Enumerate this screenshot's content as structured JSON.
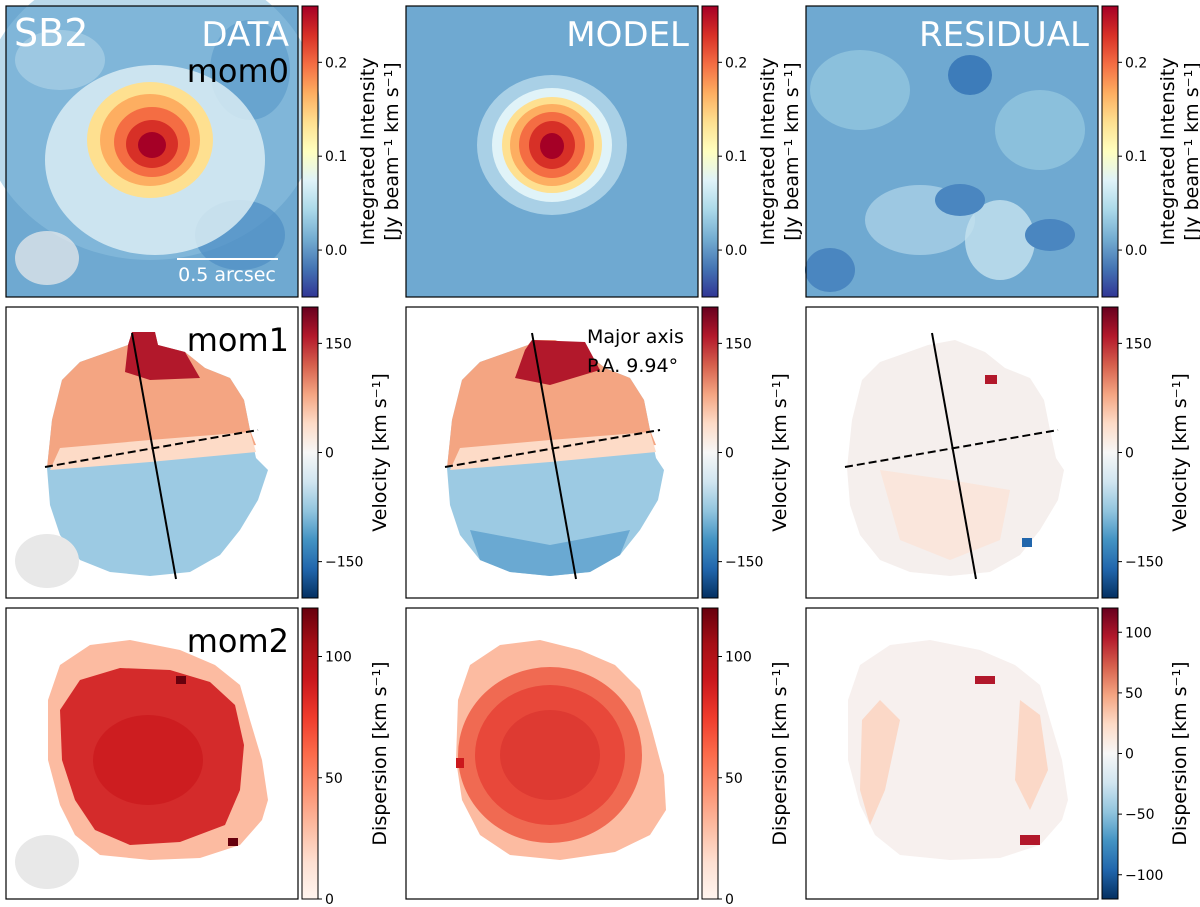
{
  "figure": {
    "source_label": "SB2",
    "scale_bar_label": "0.5 arcsec",
    "major_axis_label_line1": "Major axis",
    "major_axis_label_line2": "P.A. 9.94°"
  },
  "colors": {
    "colormap_rdbu_r": [
      "#053061",
      "#2166ac",
      "#4393c3",
      "#92c5de",
      "#d1e5f0",
      "#f7f7f7",
      "#fddbc7",
      "#f4a582",
      "#d6604d",
      "#b2182b",
      "#67001f"
    ],
    "colormap_jet_like": [
      "#313695",
      "#4575b4",
      "#74add1",
      "#abd9e9",
      "#e0f3f8",
      "#ffffbf",
      "#fee090",
      "#fdae61",
      "#f46d43",
      "#d73027",
      "#a50026"
    ],
    "colormap_reds": [
      "#fff5f0",
      "#fee0d2",
      "#fcbba1",
      "#fc9272",
      "#fb6a4a",
      "#ef3b2c",
      "#cb181d",
      "#a50f15",
      "#67000d"
    ],
    "beam_fill": "#e8e8e8",
    "axis_line": "#000000"
  },
  "chart_data": [
    {
      "type": "heatmap",
      "row": "mom0",
      "column": "DATA",
      "panel_title": "DATA",
      "moment_label": "mom0",
      "colorbar_label_line1": "Integrated Intensity",
      "colorbar_label_line2": "[Jy beam⁻¹ km s⁻¹]",
      "vmin": -0.05,
      "vmax": 0.26,
      "ticks": [
        {
          "v": 0.2,
          "label": "0.2"
        },
        {
          "v": 0.1,
          "label": "0.1"
        },
        {
          "v": 0.0,
          "label": "0.0"
        }
      ]
    },
    {
      "type": "heatmap",
      "row": "mom0",
      "column": "MODEL",
      "panel_title": "MODEL",
      "colorbar_label_line1": "Integrated Intensity",
      "colorbar_label_line2": "[Jy beam⁻¹ km s⁻¹]",
      "vmin": -0.05,
      "vmax": 0.26,
      "ticks": [
        {
          "v": 0.2,
          "label": "0.2"
        },
        {
          "v": 0.1,
          "label": "0.1"
        },
        {
          "v": 0.0,
          "label": "0.0"
        }
      ]
    },
    {
      "type": "heatmap",
      "row": "mom0",
      "column": "RESIDUAL",
      "panel_title": "RESIDUAL",
      "colorbar_label_line1": "Integrated Intensity",
      "colorbar_label_line2": "[Jy beam⁻¹ km s⁻¹]",
      "vmin": -0.05,
      "vmax": 0.26,
      "ticks": [
        {
          "v": 0.2,
          "label": "0.2"
        },
        {
          "v": 0.1,
          "label": "0.1"
        },
        {
          "v": 0.0,
          "label": "0.0"
        }
      ]
    },
    {
      "type": "heatmap",
      "row": "mom1",
      "column": "DATA",
      "moment_label": "mom1",
      "colorbar_label_line1": "Velocity [km s⁻¹]",
      "vmin": -200,
      "vmax": 200,
      "ticks": [
        {
          "v": 150,
          "label": "150"
        },
        {
          "v": 0,
          "label": "0"
        },
        {
          "v": -150,
          "label": "−150"
        }
      ]
    },
    {
      "type": "heatmap",
      "row": "mom1",
      "column": "MODEL",
      "colorbar_label_line1": "Velocity [km s⁻¹]",
      "vmin": -200,
      "vmax": 200,
      "ticks": [
        {
          "v": 150,
          "label": "150"
        },
        {
          "v": 0,
          "label": "0"
        },
        {
          "v": -150,
          "label": "−150"
        }
      ]
    },
    {
      "type": "heatmap",
      "row": "mom1",
      "column": "RESIDUAL",
      "colorbar_label_line1": "Velocity [km s⁻¹]",
      "vmin": -200,
      "vmax": 200,
      "ticks": [
        {
          "v": 150,
          "label": "150"
        },
        {
          "v": 0,
          "label": "0"
        },
        {
          "v": -150,
          "label": "−150"
        }
      ]
    },
    {
      "type": "heatmap",
      "row": "mom2",
      "column": "DATA",
      "moment_label": "mom2",
      "colorbar_label_line1": "Dispersion [km s⁻¹]",
      "vmin": 0,
      "vmax": 120,
      "ticks": [
        {
          "v": 100,
          "label": "100"
        },
        {
          "v": 50,
          "label": "50"
        },
        {
          "v": 0,
          "label": "0"
        }
      ]
    },
    {
      "type": "heatmap",
      "row": "mom2",
      "column": "MODEL",
      "colorbar_label_line1": "Dispersion [km s⁻¹]",
      "vmin": 0,
      "vmax": 120,
      "ticks": [
        {
          "v": 100,
          "label": "100"
        },
        {
          "v": 50,
          "label": "50"
        },
        {
          "v": 0,
          "label": "0"
        }
      ]
    },
    {
      "type": "heatmap",
      "row": "mom2",
      "column": "RESIDUAL",
      "colorbar_label_line1": "Dispersion [km s⁻¹]",
      "vmin": -120,
      "vmax": 120,
      "ticks": [
        {
          "v": 100,
          "label": "100"
        },
        {
          "v": 50,
          "label": "50"
        },
        {
          "v": 0,
          "label": "0"
        },
        {
          "v": -50,
          "label": "−50"
        },
        {
          "v": -100,
          "label": "−100"
        }
      ]
    }
  ]
}
